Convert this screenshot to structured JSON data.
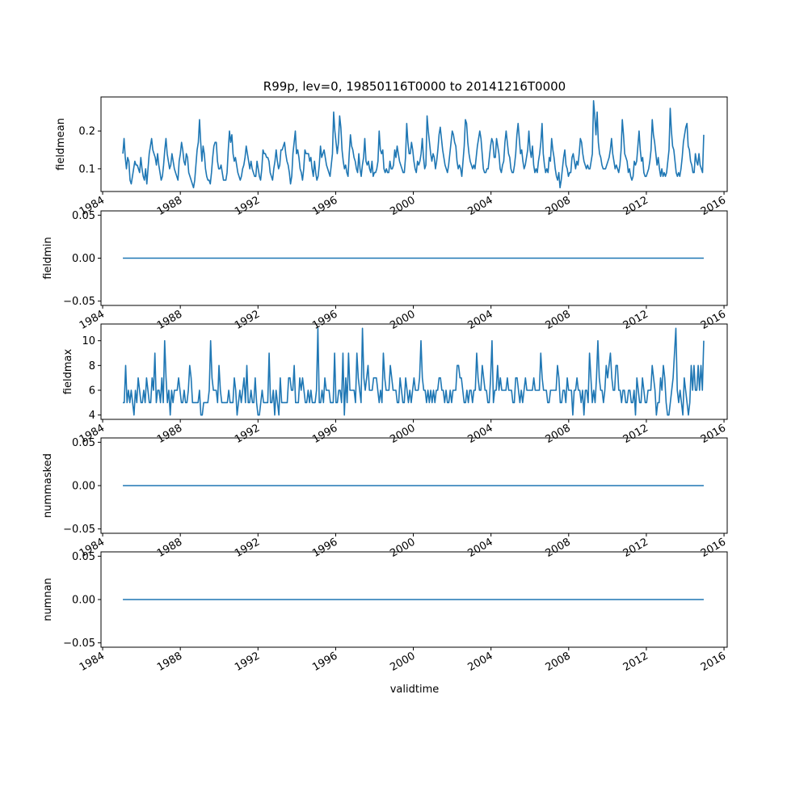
{
  "chart_data": {
    "type": "line",
    "title": "R99p, lev=0, 19850116T0000 to 20141216T0000",
    "xlabel": "validtime",
    "line_color": "#1f77b4",
    "x_start": "1985-01-16",
    "x_end": "2014-12-16",
    "xlim": [
      "1983-12-01",
      "2016-03-01"
    ],
    "xticks": [
      "1984",
      "1988",
      "1992",
      "1996",
      "2000",
      "2004",
      "2008",
      "2012",
      "2016"
    ],
    "subplots": [
      {
        "ylabel": "fieldmean",
        "ylim": [
          0.04,
          0.29
        ],
        "yticks": [
          "0.1",
          "0.2"
        ],
        "values": [
          0.14,
          0.18,
          0.13,
          0.1,
          0.13,
          0.12,
          0.07,
          0.06,
          0.08,
          0.1,
          0.12,
          0.11,
          0.11,
          0.1,
          0.09,
          0.13,
          0.1,
          0.08,
          0.07,
          0.1,
          0.06,
          0.1,
          0.14,
          0.16,
          0.18,
          0.15,
          0.14,
          0.13,
          0.11,
          0.14,
          0.11,
          0.09,
          0.07,
          0.08,
          0.11,
          0.15,
          0.18,
          0.14,
          0.12,
          0.1,
          0.11,
          0.14,
          0.12,
          0.1,
          0.09,
          0.08,
          0.07,
          0.12,
          0.14,
          0.17,
          0.15,
          0.12,
          0.11,
          0.14,
          0.13,
          0.09,
          0.08,
          0.07,
          0.06,
          0.05,
          0.07,
          0.11,
          0.15,
          0.17,
          0.23,
          0.17,
          0.12,
          0.16,
          0.14,
          0.1,
          0.08,
          0.07,
          0.07,
          0.06,
          0.09,
          0.13,
          0.16,
          0.17,
          0.17,
          0.12,
          0.1,
          0.1,
          0.11,
          0.09,
          0.07,
          0.07,
          0.07,
          0.09,
          0.15,
          0.2,
          0.17,
          0.19,
          0.14,
          0.12,
          0.13,
          0.11,
          0.09,
          0.08,
          0.07,
          0.08,
          0.1,
          0.11,
          0.13,
          0.16,
          0.14,
          0.12,
          0.1,
          0.12,
          0.1,
          0.09,
          0.08,
          0.08,
          0.12,
          0.1,
          0.08,
          0.07,
          0.1,
          0.15,
          0.14,
          0.14,
          0.13,
          0.13,
          0.12,
          0.09,
          0.08,
          0.07,
          0.1,
          0.12,
          0.15,
          0.12,
          0.1,
          0.11,
          0.15,
          0.15,
          0.16,
          0.17,
          0.14,
          0.12,
          0.11,
          0.09,
          0.06,
          0.08,
          0.14,
          0.17,
          0.2,
          0.14,
          0.15,
          0.13,
          0.1,
          0.09,
          0.07,
          0.1,
          0.15,
          0.14,
          0.14,
          0.14,
          0.12,
          0.13,
          0.1,
          0.08,
          0.12,
          0.09,
          0.07,
          0.08,
          0.11,
          0.16,
          0.13,
          0.14,
          0.15,
          0.13,
          0.11,
          0.1,
          0.09,
          0.08,
          0.11,
          0.14,
          0.25,
          0.2,
          0.17,
          0.14,
          0.17,
          0.24,
          0.21,
          0.15,
          0.12,
          0.1,
          0.11,
          0.09,
          0.08,
          0.14,
          0.19,
          0.16,
          0.15,
          0.13,
          0.12,
          0.1,
          0.09,
          0.14,
          0.1,
          0.08,
          0.11,
          0.13,
          0.18,
          0.12,
          0.11,
          0.12,
          0.1,
          0.09,
          0.12,
          0.08,
          0.09,
          0.09,
          0.1,
          0.12,
          0.2,
          0.15,
          0.14,
          0.15,
          0.1,
          0.09,
          0.1,
          0.09,
          0.09,
          0.12,
          0.1,
          0.1,
          0.11,
          0.15,
          0.13,
          0.16,
          0.14,
          0.12,
          0.11,
          0.1,
          0.09,
          0.09,
          0.13,
          0.22,
          0.17,
          0.14,
          0.14,
          0.17,
          0.15,
          0.12,
          0.1,
          0.09,
          0.12,
          0.11,
          0.12,
          0.14,
          0.18,
          0.13,
          0.1,
          0.11,
          0.24,
          0.2,
          0.17,
          0.14,
          0.12,
          0.14,
          0.13,
          0.1,
          0.12,
          0.15,
          0.19,
          0.21,
          0.18,
          0.15,
          0.13,
          0.11,
          0.1,
          0.09,
          0.11,
          0.14,
          0.17,
          0.2,
          0.19,
          0.17,
          0.16,
          0.12,
          0.1,
          0.11,
          0.1,
          0.08,
          0.12,
          0.16,
          0.23,
          0.22,
          0.17,
          0.14,
          0.12,
          0.11,
          0.1,
          0.11,
          0.1,
          0.13,
          0.16,
          0.18,
          0.2,
          0.18,
          0.14,
          0.1,
          0.09,
          0.09,
          0.1,
          0.1,
          0.13,
          0.16,
          0.18,
          0.17,
          0.13,
          0.13,
          0.18,
          0.16,
          0.14,
          0.1,
          0.09,
          0.11,
          0.12,
          0.17,
          0.2,
          0.17,
          0.14,
          0.13,
          0.1,
          0.09,
          0.09,
          0.11,
          0.14,
          0.19,
          0.22,
          0.18,
          0.14,
          0.15,
          0.12,
          0.1,
          0.11,
          0.13,
          0.15,
          0.2,
          0.15,
          0.13,
          0.16,
          0.11,
          0.09,
          0.1,
          0.09,
          0.12,
          0.14,
          0.17,
          0.22,
          0.14,
          0.11,
          0.09,
          0.1,
          0.09,
          0.13,
          0.12,
          0.18,
          0.15,
          0.13,
          0.1,
          0.08,
          0.07,
          0.09,
          0.05,
          0.07,
          0.1,
          0.13,
          0.15,
          0.11,
          0.1,
          0.08,
          0.09,
          0.09,
          0.13,
          0.14,
          0.12,
          0.1,
          0.12,
          0.11,
          0.14,
          0.18,
          0.17,
          0.14,
          0.12,
          0.11,
          0.1,
          0.11,
          0.1,
          0.1,
          0.12,
          0.14,
          0.28,
          0.24,
          0.19,
          0.25,
          0.17,
          0.14,
          0.13,
          0.11,
          0.1,
          0.1,
          0.1,
          0.11,
          0.12,
          0.13,
          0.15,
          0.18,
          0.14,
          0.12,
          0.1,
          0.11,
          0.1,
          0.09,
          0.11,
          0.15,
          0.23,
          0.19,
          0.14,
          0.13,
          0.12,
          0.09,
          0.1,
          0.08,
          0.07,
          0.08,
          0.12,
          0.11,
          0.12,
          0.16,
          0.2,
          0.15,
          0.12,
          0.13,
          0.09,
          0.08,
          0.08,
          0.09,
          0.1,
          0.12,
          0.15,
          0.23,
          0.19,
          0.17,
          0.14,
          0.11,
          0.13,
          0.1,
          0.08,
          0.1,
          0.08,
          0.09,
          0.08,
          0.09,
          0.12,
          0.15,
          0.26,
          0.2,
          0.16,
          0.15,
          0.12,
          0.09,
          0.08,
          0.09,
          0.08,
          0.1,
          0.13,
          0.17,
          0.19,
          0.21,
          0.22,
          0.16,
          0.15,
          0.12,
          0.11,
          0.09,
          0.09,
          0.14,
          0.12,
          0.11,
          0.14,
          0.11,
          0.1,
          0.09,
          0.19
        ]
      },
      {
        "ylabel": "fieldmin",
        "ylim": [
          -0.055,
          0.055
        ],
        "yticks": [
          "−0.05",
          "0.00",
          "0.05"
        ],
        "constant": 0.0
      },
      {
        "ylabel": "fieldmax",
        "ylim": [
          3.65,
          11.35
        ],
        "yticks": [
          "4",
          "6",
          "8",
          "10"
        ],
        "values": [
          5,
          5,
          8,
          5,
          6,
          5,
          6,
          5,
          4,
          6,
          5,
          7,
          6,
          5,
          5,
          6,
          5,
          7,
          6,
          5,
          5,
          7,
          6,
          9,
          5,
          6,
          6,
          5,
          7,
          5,
          10,
          7,
          5,
          6,
          4,
          6,
          5,
          6,
          6,
          6,
          7,
          6,
          5,
          5,
          6,
          5,
          5,
          6,
          8,
          7,
          5,
          5,
          5,
          5,
          5,
          6,
          4,
          4,
          5,
          5,
          5,
          5,
          6,
          10,
          7,
          6,
          6,
          6,
          5,
          8,
          6,
          5,
          5,
          5,
          5,
          5,
          6,
          5,
          5,
          5,
          7,
          6,
          4,
          5,
          6,
          5,
          6,
          7,
          5,
          8,
          5,
          5,
          6,
          5,
          5,
          7,
          5,
          4,
          4,
          5,
          6,
          5,
          5,
          5,
          5,
          9,
          5,
          5,
          6,
          4,
          6,
          5,
          4,
          7,
          5,
          5,
          5,
          5,
          5,
          7,
          7,
          6,
          6,
          8,
          5,
          5,
          5,
          7,
          6,
          7,
          6,
          5,
          5,
          6,
          5,
          6,
          5,
          5,
          5,
          6,
          11,
          5,
          5,
          6,
          5,
          7,
          6,
          6,
          6,
          5,
          5,
          5,
          9,
          5,
          5,
          6,
          6,
          5,
          9,
          4,
          7,
          5,
          9,
          6,
          6,
          6,
          6,
          5,
          9,
          7,
          6,
          5,
          11,
          7,
          6,
          7,
          8,
          6,
          6,
          6,
          7,
          7,
          7,
          6,
          5,
          6,
          5,
          9,
          7,
          6,
          6,
          6,
          8,
          7,
          6,
          6,
          6,
          5,
          5,
          7,
          6,
          5,
          5,
          7,
          6,
          5,
          6,
          5,
          6,
          7,
          6,
          6,
          6,
          7,
          10,
          7,
          6,
          6,
          5,
          6,
          5,
          6,
          5,
          6,
          5,
          6,
          6,
          7,
          7,
          6,
          6,
          5,
          6,
          5,
          5,
          6,
          5,
          6,
          6,
          6,
          8,
          8,
          7,
          7,
          6,
          5,
          5,
          6,
          5,
          6,
          6,
          5,
          6,
          6,
          9,
          7,
          6,
          6,
          8,
          7,
          6,
          6,
          5,
          5,
          7,
          10,
          5,
          6,
          6,
          8,
          6,
          7,
          6,
          6,
          6,
          6,
          7,
          6,
          6,
          6,
          5,
          5,
          7,
          7,
          6,
          5,
          6,
          5,
          6,
          7,
          6,
          6,
          6,
          6,
          6,
          7,
          6,
          6,
          6,
          6,
          9,
          7,
          6,
          6,
          6,
          5,
          5,
          6,
          6,
          6,
          6,
          6,
          8,
          7,
          5,
          5,
          6,
          6,
          5,
          7,
          6,
          6,
          6,
          4,
          6,
          6,
          7,
          6,
          6,
          5,
          6,
          4,
          6,
          6,
          5,
          9,
          7,
          5,
          6,
          5,
          7,
          10,
          7,
          6,
          6,
          5,
          6,
          8,
          7,
          8,
          9,
          7,
          6,
          6,
          8,
          8,
          6,
          6,
          5,
          6,
          6,
          5,
          5,
          6,
          6,
          5,
          5,
          6,
          4,
          7,
          6,
          5,
          5,
          7,
          6,
          5,
          5,
          6,
          6,
          6,
          8,
          7,
          6,
          4,
          5,
          5,
          7,
          6,
          8,
          7,
          5,
          4,
          4,
          5,
          6,
          7,
          9,
          11,
          6,
          5,
          6,
          5,
          4,
          7,
          6,
          5,
          4,
          5,
          8,
          6,
          8,
          6,
          6,
          8,
          6,
          8,
          6,
          10
        ]
      },
      {
        "ylabel": "nummasked",
        "ylim": [
          -0.055,
          0.055
        ],
        "yticks": [
          "−0.05",
          "0.00",
          "0.05"
        ],
        "constant": 0.0
      },
      {
        "ylabel": "numnan",
        "ylim": [
          -0.055,
          0.055
        ],
        "yticks": [
          "−0.05",
          "0.00",
          "0.05"
        ],
        "constant": 0.0
      }
    ]
  }
}
